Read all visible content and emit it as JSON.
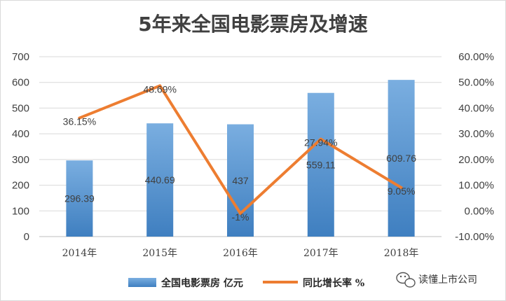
{
  "chart_data": {
    "type": "bar",
    "title": "5年来全国电影票房及增速",
    "categories": [
      "2014年",
      "2015年",
      "2016年",
      "2017年",
      "2018年"
    ],
    "series": [
      {
        "name": "全国电影票房 亿元",
        "kind": "bar",
        "axis": "left",
        "color": "#5b9bd5",
        "values": [
          296.39,
          440.69,
          437,
          559.11,
          609.76
        ],
        "labels": [
          "296.39",
          "440.69",
          "437",
          "559.11",
          "609.76"
        ]
      },
      {
        "name": "同比增长率 %",
        "kind": "line",
        "axis": "right",
        "color": "#ed7d31",
        "values": [
          36.15,
          48.69,
          -1,
          27.94,
          9.05
        ],
        "labels": [
          "36.15%",
          "48.69%",
          "-1%",
          "27.94%",
          "9.05%"
        ]
      }
    ],
    "y_left": {
      "min": 0,
      "max": 700,
      "step": 100,
      "ticks": [
        "0",
        "100",
        "200",
        "300",
        "400",
        "500",
        "600",
        "700"
      ]
    },
    "y_right": {
      "min": -10,
      "max": 60,
      "step": 10,
      "ticks": [
        "-10.00%",
        "0.00%",
        "10.00%",
        "20.00%",
        "30.00%",
        "40.00%",
        "50.00%",
        "60.00%"
      ]
    },
    "grid": true,
    "legend_position": "bottom"
  },
  "watermark": {
    "icon": "wechat-icon",
    "text": "读懂上市公司"
  }
}
